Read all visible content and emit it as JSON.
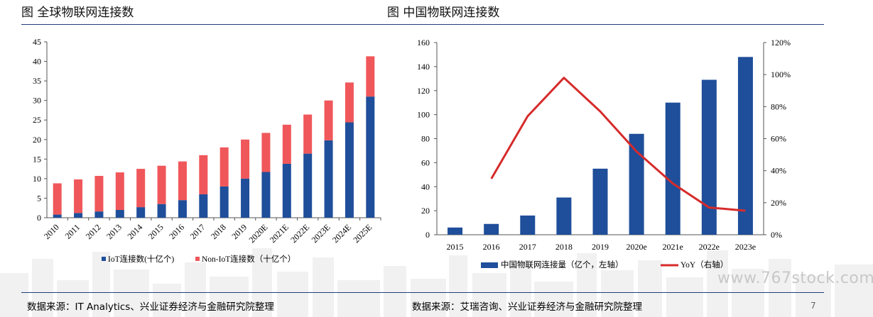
{
  "titles": {
    "left": "图 全球物联网连接数",
    "right": "图 中国物联网连接数"
  },
  "sources": {
    "left": "数据来源：IT Analytics、兴业证券经济与金融研究院整理",
    "right": "数据来源：艾瑞咨询、兴业证券经济与金融研究院整理"
  },
  "page_number": "7",
  "watermark": "www.767stock.com",
  "colors": {
    "blue": "#1f4e9a",
    "red": "#f0575a",
    "line_red": "#d62b2b",
    "rule": "#1f3f7a"
  },
  "chart_data": [
    {
      "type": "bar",
      "stacked": true,
      "categories": [
        "2010",
        "2011",
        "2012",
        "2013",
        "2014",
        "2015",
        "2016",
        "2017",
        "2018",
        "2019",
        "2020E",
        "2021E",
        "2022E",
        "2023E",
        "2024E",
        "2025E"
      ],
      "series": [
        {
          "name": "IoT连接数(十亿个)",
          "values": [
            0.8,
            1.2,
            1.6,
            2.0,
            2.7,
            3.5,
            4.5,
            6.0,
            8.0,
            10.0,
            11.7,
            13.8,
            16.4,
            19.8,
            24.4,
            31.0
          ]
        },
        {
          "name": "Non-IoT连接数（十亿个）",
          "values": [
            8.0,
            8.6,
            9.1,
            9.6,
            9.8,
            9.8,
            9.9,
            10.0,
            10.0,
            10.0,
            10.0,
            10.0,
            10.0,
            10.2,
            10.2,
            10.3
          ]
        }
      ],
      "ylim": [
        0,
        45
      ],
      "yticks": [
        "0",
        "5",
        "10",
        "15",
        "20",
        "25",
        "30",
        "35",
        "40",
        "45"
      ],
      "legend": "bottom",
      "grid": false
    },
    {
      "type": "bar",
      "categories": [
        "2015",
        "2016",
        "2017",
        "2018",
        "2019",
        "2020e",
        "2021e",
        "2022e",
        "2023e"
      ],
      "series": [
        {
          "name": "中国物联网连接量（亿个，左轴）",
          "kind": "bar",
          "values": [
            6,
            9,
            16,
            31,
            55,
            84,
            110,
            129,
            148
          ]
        },
        {
          "name": "YoY（右轴）",
          "kind": "line",
          "axis": "right",
          "values": [
            null,
            35,
            74,
            98,
            77,
            52,
            32,
            17,
            15
          ]
        }
      ],
      "ylim": [
        0,
        160
      ],
      "y2lim": [
        0,
        120
      ],
      "yticks": [
        "0",
        "20",
        "40",
        "60",
        "80",
        "100",
        "120",
        "140",
        "160"
      ],
      "y2ticks": [
        "0%",
        "20%",
        "40%",
        "60%",
        "80%",
        "100%",
        "120%"
      ],
      "legend": "bottom",
      "grid": false
    }
  ]
}
